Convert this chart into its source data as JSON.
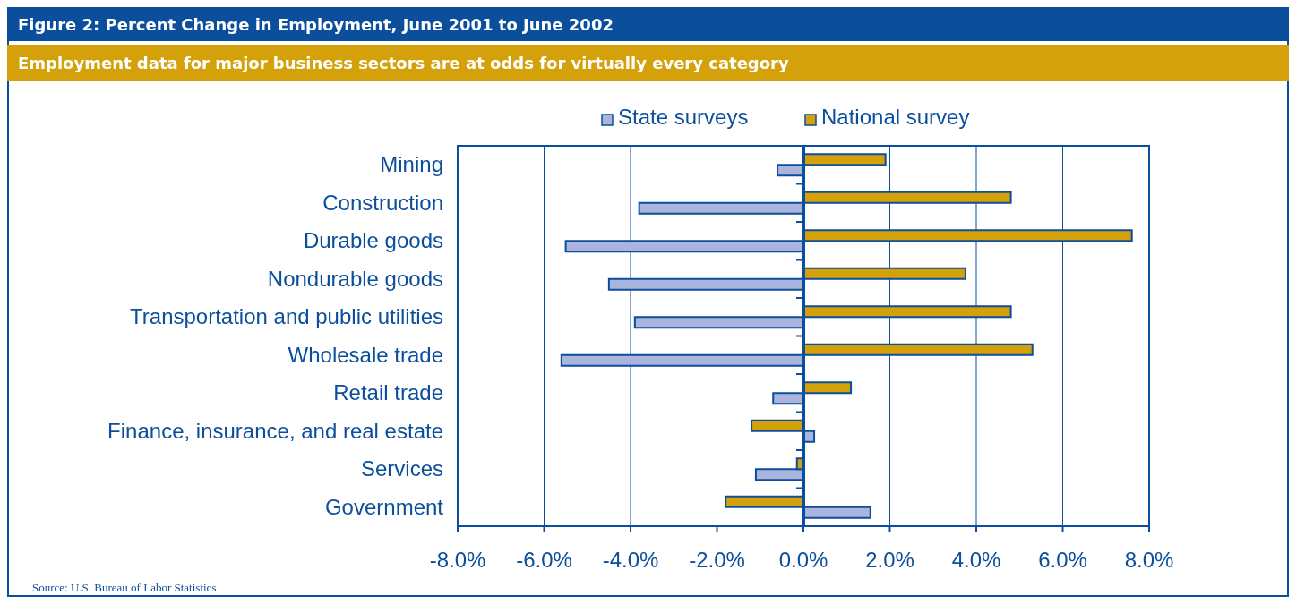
{
  "chart_data": {
    "type": "bar",
    "orientation": "horizontal",
    "title": "Figure 2: Percent Change in Employment, June 2001 to June 2002",
    "subtitle": "Employment data for major business sectors are at odds for virtually every category",
    "categories": [
      "Mining",
      "Construction",
      "Durable goods",
      "Nondurable goods",
      "Transportation and public utilities",
      "Wholesale trade",
      "Retail trade",
      "Finance, insurance, and real estate",
      "Services",
      "Government"
    ],
    "series": [
      {
        "name": "State surveys",
        "color": "#aab4dc",
        "values": [
          -0.6,
          -3.8,
          -5.5,
          -4.5,
          -3.9,
          -5.6,
          -0.7,
          0.25,
          -1.1,
          1.55
        ]
      },
      {
        "name": "National survey",
        "color": "#d4a10b",
        "values": [
          1.9,
          4.8,
          7.6,
          3.75,
          4.8,
          5.3,
          1.1,
          -1.2,
          -0.15,
          -1.8
        ]
      }
    ],
    "xlim": [
      -8,
      8
    ],
    "xticks": [
      {
        "value": -8,
        "label": "-8.0%"
      },
      {
        "value": -6,
        "label": "-6.0%"
      },
      {
        "value": -4,
        "label": "-4.0%"
      },
      {
        "value": -2,
        "label": "-2.0%"
      },
      {
        "value": 0,
        "label": "0.0%"
      },
      {
        "value": 2,
        "label": "2.0%"
      },
      {
        "value": 4,
        "label": "4.0%"
      },
      {
        "value": 6,
        "label": "6.0%"
      },
      {
        "value": 8,
        "label": "8.0%"
      }
    ],
    "grid": "x",
    "legend": "top",
    "ref_lines": [
      {
        "axis": "x",
        "value": 0,
        "color": "#0b4f9c"
      }
    ],
    "annotations": [
      "Source: U.S. Bureau of Labor Statistics"
    ]
  }
}
